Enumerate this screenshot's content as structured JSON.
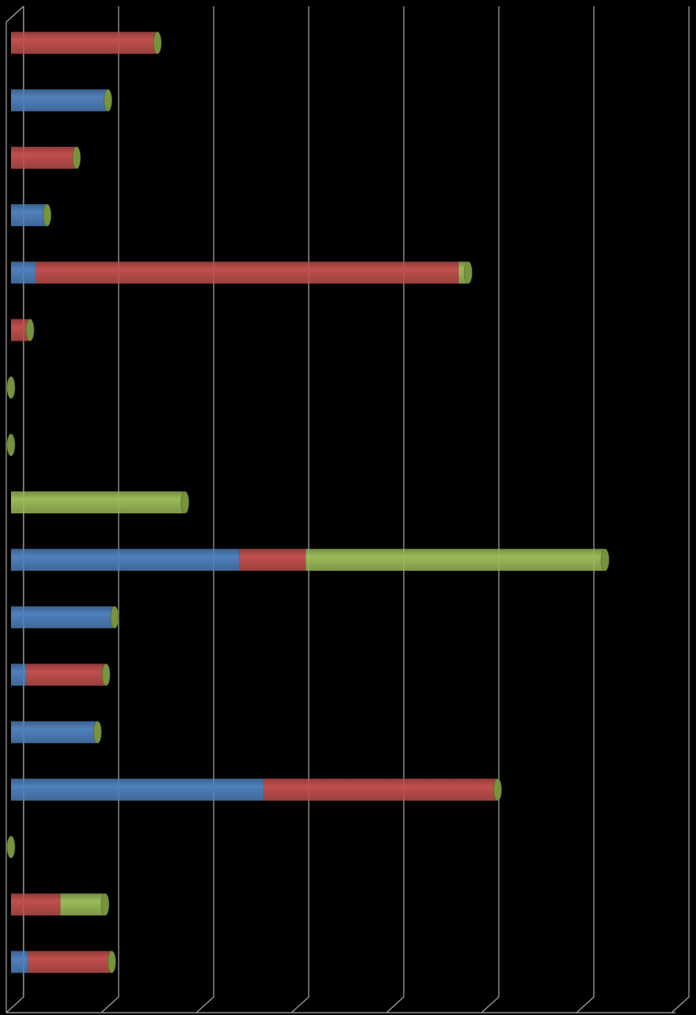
{
  "chart_data": {
    "type": "bar",
    "orientation": "horizontal",
    "stacked": true,
    "style": "3d-cylinder",
    "categories": [
      null,
      null,
      null,
      null,
      null,
      null,
      null,
      null,
      null,
      null,
      null,
      null,
      null,
      null,
      null,
      null,
      null
    ],
    "series": [
      {
        "color": "#4f81bd",
        "values": [
          0,
          1.02,
          0,
          0.38,
          0.26,
          0,
          0,
          0,
          0,
          2.4,
          1.09,
          0.16,
          0.91,
          2.66,
          0,
          0,
          0.18
        ]
      },
      {
        "color": "#c0504d",
        "values": [
          1.54,
          0,
          0.69,
          0,
          4.45,
          0.2,
          0,
          0,
          0,
          0.7,
          0,
          0.84,
          0,
          2.46,
          0,
          0.52,
          0.88
        ]
      },
      {
        "color": "#9bbb59",
        "values": [
          0,
          0,
          0,
          0,
          0.1,
          0,
          0,
          0,
          1.83,
          3.15,
          0,
          0,
          0,
          0,
          0,
          0.47,
          0
        ]
      }
    ],
    "cap_color": "#77933c",
    "xlim": [
      0,
      7
    ],
    "xticks": [
      0,
      1,
      2,
      3,
      4,
      5,
      6,
      7
    ],
    "grid": true
  }
}
